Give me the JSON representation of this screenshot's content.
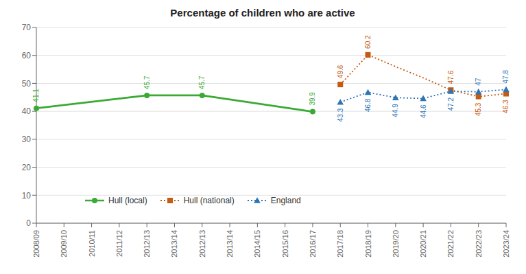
{
  "chart_data": {
    "type": "line",
    "title": "Percentage of children who are active",
    "categories": [
      "2008/09",
      "2009/10",
      "2010/11",
      "2011/12",
      "2012/13",
      "2013/14",
      "2012/13",
      "2013/14",
      "2014/15",
      "2015/16",
      "2016/17",
      "2017/18",
      "2018/19",
      "2019/20",
      "2020/21",
      "2021/22",
      "2022/23",
      "2023/24"
    ],
    "series": [
      {
        "name": "Hull (local)",
        "color": "#3BAA35",
        "marker": "circle",
        "line_style": "solid",
        "values": [
          41.1,
          null,
          null,
          null,
          45.7,
          null,
          45.7,
          null,
          null,
          null,
          39.9,
          null,
          null,
          null,
          null,
          null,
          null,
          null
        ]
      },
      {
        "name": "Hull (national)",
        "color": "#C55A11",
        "marker": "square",
        "line_style": "dotted",
        "values": [
          null,
          null,
          null,
          null,
          null,
          null,
          null,
          null,
          null,
          null,
          null,
          49.6,
          60.2,
          56.0,
          52.0,
          47.6,
          45.3,
          46.3
        ],
        "value_labels": [
          null,
          null,
          null,
          null,
          null,
          null,
          null,
          null,
          null,
          null,
          null,
          "49.6",
          "60.2",
          null,
          null,
          "47.6",
          "45.3",
          "46.3"
        ]
      },
      {
        "name": "England",
        "color": "#2E75B6",
        "marker": "triangle",
        "line_style": "dotted",
        "values": [
          null,
          null,
          null,
          null,
          null,
          null,
          null,
          null,
          null,
          null,
          null,
          43.3,
          46.8,
          44.9,
          44.6,
          47.2,
          47.0,
          47.8
        ]
      }
    ],
    "ylim": [
      0,
      70
    ],
    "yticks": [
      0,
      10,
      20,
      30,
      40,
      50,
      60,
      70
    ],
    "grid": true,
    "legend": "lower left",
    "data_labels": true
  }
}
